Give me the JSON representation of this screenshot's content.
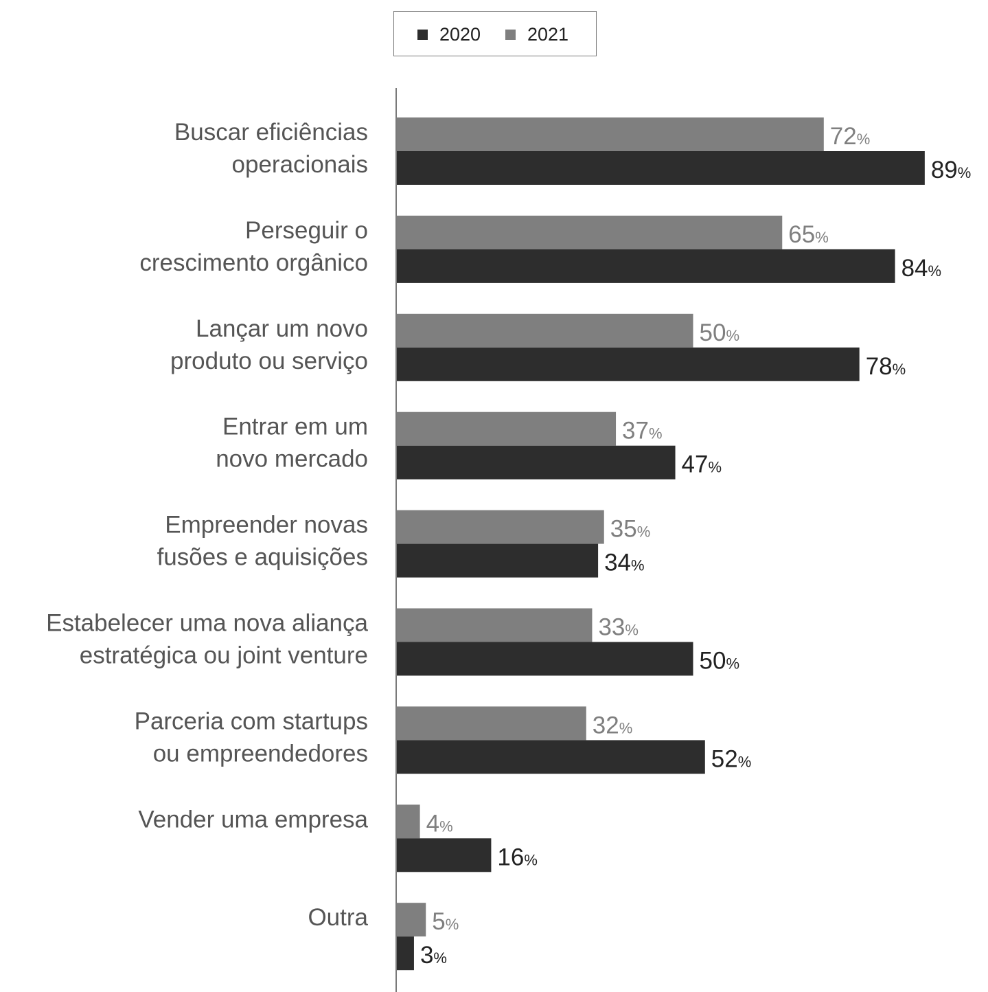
{
  "chart_data": {
    "type": "bar",
    "orientation": "horizontal",
    "categories": [
      [
        "Buscar eficiências",
        "operacionais"
      ],
      [
        "Perseguir o",
        "crescimento orgânico"
      ],
      [
        "Lançar um novo",
        "produto ou serviço"
      ],
      [
        "Entrar em um",
        "novo mercado"
      ],
      [
        "Empreender novas",
        "fusões e aquisições"
      ],
      [
        "Estabelecer uma nova aliança",
        "estratégica ou joint venture"
      ],
      [
        "Parceria com startups",
        "ou empreendedores"
      ],
      [
        "Vender uma empresa"
      ],
      [
        "Outra"
      ]
    ],
    "series": [
      {
        "name": "2021",
        "color": "#7f7f7f",
        "values": [
          72,
          65,
          50,
          37,
          35,
          33,
          32,
          4,
          5
        ]
      },
      {
        "name": "2020",
        "color": "#2d2d2d",
        "values": [
          89,
          84,
          78,
          47,
          34,
          50,
          52,
          16,
          3
        ]
      }
    ],
    "value_suffix": "%",
    "xlim": [
      0,
      100
    ],
    "legend": {
      "position": "top-center",
      "items": [
        {
          "name": "2020",
          "color": "#2d2d2d"
        },
        {
          "name": "2021",
          "color": "#7f7f7f"
        }
      ]
    },
    "grid": false,
    "title": "",
    "xlabel": "",
    "ylabel": ""
  }
}
